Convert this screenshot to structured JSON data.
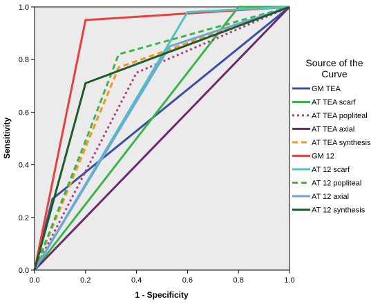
{
  "chart_data": {
    "type": "line",
    "xlabel": "1 - Specificity",
    "ylabel": "Sensitivity",
    "xlim": [
      0,
      1
    ],
    "ylim": [
      0,
      1
    ],
    "xticks": [
      "0.0",
      "0.2",
      "0.4",
      "0.6",
      "0.8",
      "1.0"
    ],
    "yticks": [
      "0.0",
      "0.2",
      "0.4",
      "0.6",
      "0.8",
      "1.0"
    ],
    "grid": false,
    "legend": {
      "title_line1": "Source of the",
      "title_line2": "Curve",
      "placement": "right"
    },
    "series": [
      {
        "name": "GM TEA",
        "color": "#3a4fa6",
        "dash": "solid",
        "x": [
          0,
          0.07,
          1
        ],
        "y": [
          0,
          0.27,
          1
        ]
      },
      {
        "name": "AT TEA scarf",
        "color": "#3bb54a",
        "dash": "solid",
        "x": [
          0,
          0.8,
          1
        ],
        "y": [
          0,
          1,
          1
        ]
      },
      {
        "name": "AT TEA popliteal",
        "color": "#b23a85",
        "dash": "dotted",
        "x": [
          0,
          0.4,
          1
        ],
        "y": [
          0,
          0.75,
          1
        ]
      },
      {
        "name": "AT TEA axial",
        "color": "#6d2a6d",
        "dash": "solid",
        "x": [
          0,
          1
        ],
        "y": [
          0,
          1
        ]
      },
      {
        "name": "AT TEA synthesis",
        "color": "#f7941d",
        "dash": "dashed",
        "x": [
          0,
          0.33,
          1
        ],
        "y": [
          0,
          0.77,
          1
        ]
      },
      {
        "name": "GM 12",
        "color": "#e8403e",
        "dash": "solid",
        "x": [
          0,
          0.2,
          1
        ],
        "y": [
          0,
          0.95,
          1
        ]
      },
      {
        "name": "AT 12 scarf",
        "color": "#4dc4c4",
        "dash": "solid",
        "x": [
          0,
          0.6,
          1
        ],
        "y": [
          0,
          0.98,
          1
        ]
      },
      {
        "name": "AT 12 popliteal",
        "color": "#3bb54a",
        "dash": "dashed",
        "x": [
          0,
          0.2,
          0.33,
          1
        ],
        "y": [
          0,
          0.49,
          0.82,
          1
        ]
      },
      {
        "name": "AT 12 axial",
        "color": "#6ea6d8",
        "dash": "solid",
        "x": [
          0,
          0.53,
          1
        ],
        "y": [
          0,
          0.85,
          1
        ]
      },
      {
        "name": "AT 12 synthesis",
        "color": "#1f5b2a",
        "dash": "solid",
        "x": [
          0,
          0.2,
          1
        ],
        "y": [
          0,
          0.71,
          1
        ]
      }
    ]
  }
}
